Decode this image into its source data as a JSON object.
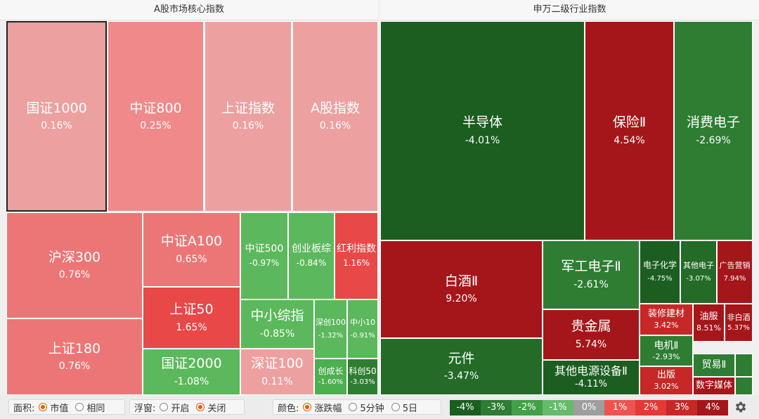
{
  "panels": {
    "left_title": "A股市场核心指数",
    "right_title": "申万二级行业指数"
  },
  "tiles": [
    {
      "id": "guozheng1000",
      "name": "国证1000",
      "pct": "0.16%",
      "color": "#eda0a0",
      "selected": true
    },
    {
      "id": "zhongzheng800",
      "name": "中证800",
      "pct": "0.25%",
      "color": "#f08a8a"
    },
    {
      "id": "shangzheng-zhishu",
      "name": "上证指数",
      "pct": "0.16%",
      "color": "#eda0a0"
    },
    {
      "id": "agu-zhishu",
      "name": "A股指数",
      "pct": "0.16%",
      "color": "#eda0a0"
    },
    {
      "id": "hushen300",
      "name": "沪深300",
      "pct": "0.76%",
      "color": "#ec7676"
    },
    {
      "id": "shangzheng180",
      "name": "上证180",
      "pct": "0.76%",
      "color": "#ec7676"
    },
    {
      "id": "zhongzheng-a100",
      "name": "中证A100",
      "pct": "0.65%",
      "color": "#ec7676"
    },
    {
      "id": "shangzheng50",
      "name": "上证50",
      "pct": "1.65%",
      "color": "#e84848"
    },
    {
      "id": "guozheng2000",
      "name": "国证2000",
      "pct": "-1.08%",
      "color": "#5cb85c"
    },
    {
      "id": "zhongzheng500",
      "name": "中证500",
      "pct": "-0.97%",
      "color": "#5cb85c"
    },
    {
      "id": "chuangye-banzong",
      "name": "创业板综",
      "pct": "-0.84%",
      "color": "#5cb85c"
    },
    {
      "id": "hongli-zhishu",
      "name": "红利指数",
      "pct": "1.16%",
      "color": "#e84848"
    },
    {
      "id": "zhongxiao-zongzhi",
      "name": "中小综指",
      "pct": "-0.85%",
      "color": "#5cb85c"
    },
    {
      "id": "shenzheng100",
      "name": "深证100",
      "pct": "0.11%",
      "color": "#eda0a0"
    },
    {
      "id": "shenchuang100",
      "name": "深创100",
      "pct": "-1.32%",
      "color": "#5cb85c"
    },
    {
      "id": "zhongxiao10",
      "name": "中小10",
      "pct": "-0.91%",
      "color": "#5cb85c"
    },
    {
      "id": "chuangchengzhang",
      "name": "创成长",
      "pct": "-1.60%",
      "color": "#4caf50"
    },
    {
      "id": "kechuang50",
      "name": "科创50",
      "pct": "-3.03%",
      "color": "#2e7d32"
    },
    {
      "id": "bandaoti",
      "name": "半导体",
      "pct": "-4.01%",
      "color": "#1b5e20"
    },
    {
      "id": "baoxian",
      "name": "保险Ⅱ",
      "pct": "4.54%",
      "color": "#a5161a"
    },
    {
      "id": "xiaofei-dianzi",
      "name": "消费电子",
      "pct": "-2.69%",
      "color": "#2e7d32"
    },
    {
      "id": "baijiu",
      "name": "白酒Ⅱ",
      "pct": "9.20%",
      "color": "#a5161a"
    },
    {
      "id": "yuanjian",
      "name": "元件",
      "pct": "-3.47%",
      "color": "#236b27"
    },
    {
      "id": "jungong-dianzi",
      "name": "军工电子Ⅱ",
      "pct": "-2.61%",
      "color": "#2e7d32"
    },
    {
      "id": "guijinshu",
      "name": "贵金属",
      "pct": "5.74%",
      "color": "#a5161a"
    },
    {
      "id": "qita-dianyuan",
      "name": "其他电源设备Ⅱ",
      "pct": "-4.11%",
      "color": "#1b5e20"
    },
    {
      "id": "dianzi-huaxue",
      "name": "电子化学",
      "pct": "-4.75%",
      "color": "#1b5e20"
    },
    {
      "id": "qita-dianzi",
      "name": "其他电子",
      "pct": "-3.07%",
      "color": "#236b27"
    },
    {
      "id": "guanggao-yingxiao",
      "name": "广告营销",
      "pct": "7.94%",
      "color": "#a5161a"
    },
    {
      "id": "zhuangxiu-jiancai",
      "name": "装修建材",
      "pct": "3.42%",
      "color": "#c62828"
    },
    {
      "id": "youfu",
      "name": "油服",
      "pct": "8.51%",
      "color": "#a5161a"
    },
    {
      "id": "fei-baijiu",
      "name": "非白酒",
      "pct": "5.37%",
      "color": "#a5161a"
    },
    {
      "id": "dianji",
      "name": "电机Ⅱ",
      "pct": "-2.93%",
      "color": "#2e7d32"
    },
    {
      "id": "chuban",
      "name": "出版",
      "pct": "3.02%",
      "color": "#c62828"
    },
    {
      "id": "maoyi",
      "name": "贸易Ⅱ",
      "pct": "",
      "color": "#2e7d32"
    },
    {
      "id": "shuzi-meiti",
      "name": "数字媒体",
      "pct": "",
      "color": "#a5161a"
    },
    {
      "id": "small-green-1",
      "name": "",
      "pct": "",
      "color": "#2e7d32"
    },
    {
      "id": "small-green-2",
      "name": "",
      "pct": "",
      "color": "#2e7d32"
    }
  ],
  "toolbar": {
    "area_label": "面积:",
    "area_options": [
      {
        "label": "市值",
        "on": true
      },
      {
        "label": "相同",
        "on": false
      }
    ],
    "float_label": "浮窗:",
    "float_options": [
      {
        "label": "开启",
        "on": false
      },
      {
        "label": "关闭",
        "on": true
      }
    ],
    "color_label": "颜色:",
    "color_options": [
      {
        "label": "涨跌幅",
        "on": true
      },
      {
        "label": "5分钟",
        "on": false
      },
      {
        "label": "5日",
        "on": false
      }
    ]
  },
  "legend": [
    {
      "label": "-4%",
      "color": "#1b5e20"
    },
    {
      "label": "-3%",
      "color": "#2e7d32"
    },
    {
      "label": "-2%",
      "color": "#43a047"
    },
    {
      "label": "-1%",
      "color": "#66bb6a"
    },
    {
      "label": "0%",
      "color": "#9e9e9e"
    },
    {
      "label": "1%",
      "color": "#ef5350"
    },
    {
      "label": "2%",
      "color": "#e53935"
    },
    {
      "label": "3%",
      "color": "#c62828"
    },
    {
      "label": "4%",
      "color": "#a5161a"
    }
  ],
  "icons": {
    "settings": "gear-icon"
  }
}
